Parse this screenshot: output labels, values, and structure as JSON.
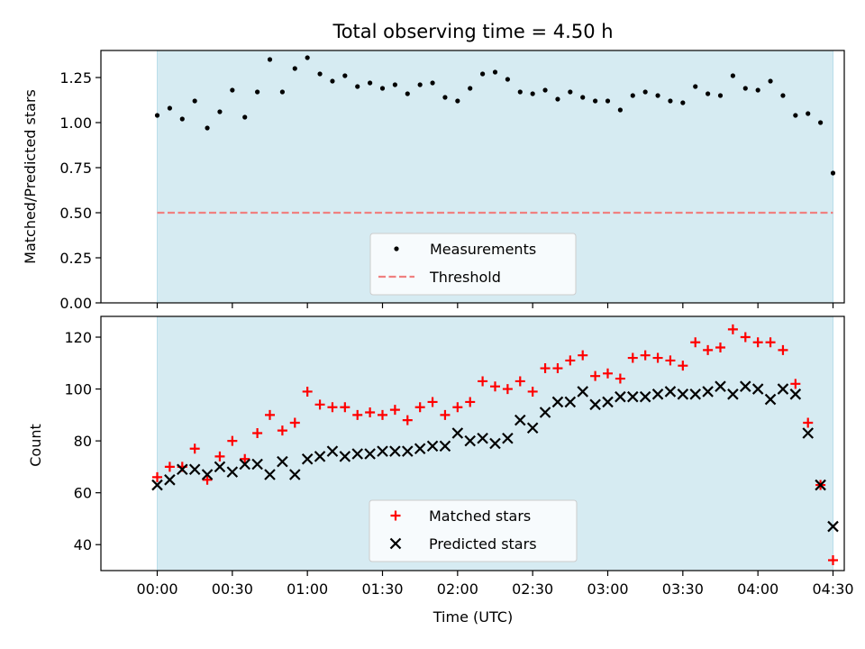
{
  "chart_data": [
    {
      "type": "scatter",
      "title": "Total observing time = 4.50 h",
      "xlabel": "",
      "ylabel": "Matched/Predicted stars",
      "xlim_minutes": [
        -22.5,
        274.5
      ],
      "ylim": [
        0,
        1.4
      ],
      "yticks": [
        0.0,
        0.25,
        0.5,
        0.75,
        1.0,
        1.25
      ],
      "ytick_labels": [
        "0.00",
        "0.25",
        "0.50",
        "0.75",
        "1.00",
        "1.25"
      ],
      "observing_window_minutes": [
        0,
        270
      ],
      "threshold": 0.5,
      "legend": {
        "position": "lower-center",
        "entries": [
          "Measurements",
          "Threshold"
        ]
      },
      "series": [
        {
          "name": "Measurements",
          "x_minutes": [
            0,
            5,
            10,
            15,
            20,
            25,
            30,
            35,
            40,
            45,
            50,
            55,
            60,
            65,
            70,
            75,
            80,
            85,
            90,
            95,
            100,
            105,
            110,
            115,
            120,
            125,
            130,
            135,
            140,
            145,
            150,
            155,
            160,
            165,
            170,
            175,
            180,
            185,
            190,
            195,
            200,
            205,
            210,
            215,
            220,
            225,
            230,
            235,
            240,
            245,
            250,
            255,
            260,
            265,
            270
          ],
          "values": [
            1.04,
            1.08,
            1.02,
            1.12,
            0.97,
            1.06,
            1.18,
            1.03,
            1.17,
            1.35,
            1.17,
            1.3,
            1.36,
            1.27,
            1.23,
            1.26,
            1.2,
            1.22,
            1.19,
            1.21,
            1.16,
            1.21,
            1.22,
            1.14,
            1.12,
            1.19,
            1.27,
            1.28,
            1.24,
            1.17,
            1.16,
            1.18,
            1.13,
            1.17,
            1.14,
            1.12,
            1.12,
            1.07,
            1.15,
            1.17,
            1.15,
            1.12,
            1.11,
            1.2,
            1.16,
            1.15,
            1.26,
            1.19,
            1.18,
            1.23,
            1.15,
            1.04,
            1.05,
            1.0,
            0.72
          ]
        }
      ]
    },
    {
      "type": "scatter",
      "title": "",
      "xlabel": "Time (UTC)",
      "ylabel": "Count",
      "xlim_minutes": [
        -22.5,
        274.5
      ],
      "ylim": [
        30,
        128
      ],
      "yticks": [
        40,
        60,
        80,
        100,
        120
      ],
      "ytick_labels": [
        "40",
        "60",
        "80",
        "100",
        "120"
      ],
      "xticks_minutes": [
        0,
        30,
        60,
        90,
        120,
        150,
        180,
        210,
        240,
        270
      ],
      "xtick_labels": [
        "00:00",
        "00:30",
        "01:00",
        "01:30",
        "02:00",
        "02:30",
        "03:00",
        "03:30",
        "04:00",
        "04:30"
      ],
      "observing_window_minutes": [
        0,
        270
      ],
      "legend": {
        "position": "lower-center",
        "entries": [
          "Matched stars",
          "Predicted stars"
        ]
      },
      "series": [
        {
          "name": "Matched stars",
          "color": "#ff0000",
          "marker": "plus",
          "x_minutes": [
            0,
            5,
            10,
            15,
            20,
            25,
            30,
            35,
            40,
            45,
            50,
            55,
            60,
            65,
            70,
            75,
            80,
            85,
            90,
            95,
            100,
            105,
            110,
            115,
            120,
            125,
            130,
            135,
            140,
            145,
            150,
            155,
            160,
            165,
            170,
            175,
            180,
            185,
            190,
            195,
            200,
            205,
            210,
            215,
            220,
            225,
            230,
            235,
            240,
            245,
            250,
            255,
            260,
            265,
            270
          ],
          "values": [
            66,
            70,
            70,
            77,
            65,
            74,
            80,
            73,
            83,
            90,
            84,
            87,
            99,
            94,
            93,
            93,
            90,
            91,
            90,
            92,
            88,
            93,
            95,
            90,
            93,
            95,
            103,
            101,
            100,
            103,
            99,
            108,
            108,
            111,
            113,
            105,
            106,
            104,
            112,
            113,
            112,
            111,
            109,
            118,
            115,
            116,
            123,
            120,
            118,
            118,
            115,
            102,
            87,
            63,
            34
          ]
        },
        {
          "name": "Predicted stars",
          "color": "#000000",
          "marker": "x",
          "x_minutes": [
            0,
            5,
            10,
            15,
            20,
            25,
            30,
            35,
            40,
            45,
            50,
            55,
            60,
            65,
            70,
            75,
            80,
            85,
            90,
            95,
            100,
            105,
            110,
            115,
            120,
            125,
            130,
            135,
            140,
            145,
            150,
            155,
            160,
            165,
            170,
            175,
            180,
            185,
            190,
            195,
            200,
            205,
            210,
            215,
            220,
            225,
            230,
            235,
            240,
            245,
            250,
            255,
            260,
            265,
            270
          ],
          "values": [
            63,
            65,
            69,
            69,
            67,
            70,
            68,
            71,
            71,
            67,
            72,
            67,
            73,
            74,
            76,
            74,
            75,
            75,
            76,
            76,
            76,
            77,
            78,
            78,
            83,
            80,
            81,
            79,
            81,
            88,
            85,
            91,
            95,
            95,
            99,
            94,
            95,
            97,
            97,
            97,
            98,
            99,
            98,
            98,
            99,
            101,
            98,
            101,
            100,
            96,
            100,
            98,
            83,
            63,
            47
          ]
        }
      ]
    }
  ]
}
